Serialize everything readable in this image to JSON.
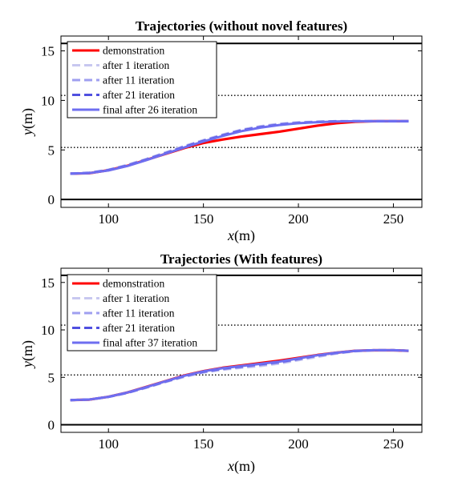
{
  "chart_data": [
    {
      "type": "line",
      "title": "Trajectories (without novel features)",
      "xlabel": "x(m)",
      "ylabel": "y(m)",
      "xlim": [
        75,
        265
      ],
      "ylim": [
        -0.8,
        16.5
      ],
      "xticks": [
        100,
        150,
        200,
        250
      ],
      "yticks": [
        0,
        5,
        10,
        15
      ],
      "grid": false,
      "legend_position": "top-left",
      "boundary_lines": [
        {
          "y": 15.75,
          "style": "solid"
        },
        {
          "y": 10.5,
          "style": "dotted"
        },
        {
          "y": 5.25,
          "style": "dotted"
        },
        {
          "y": 0,
          "style": "solid"
        }
      ],
      "series": [
        {
          "name": "demonstration",
          "color": "#ff0000",
          "style": "solid",
          "x": [
            80,
            90,
            100,
            110,
            120,
            130,
            140,
            150,
            160,
            170,
            180,
            190,
            200,
            210,
            220,
            230,
            240,
            250,
            258
          ],
          "y": [
            2.6,
            2.65,
            2.95,
            3.4,
            4.0,
            4.6,
            5.2,
            5.7,
            6.05,
            6.35,
            6.6,
            6.85,
            7.15,
            7.45,
            7.7,
            7.85,
            7.9,
            7.9,
            7.9
          ]
        },
        {
          "name": "after 1 iteration",
          "color": "#c8c8f0",
          "style": "dashed",
          "x": [
            80,
            90,
            100,
            110,
            120,
            130,
            140,
            150,
            160,
            170,
            180,
            190,
            200,
            210,
            220,
            230,
            240,
            250,
            258
          ],
          "y": [
            2.6,
            2.7,
            3.0,
            3.5,
            4.1,
            4.75,
            5.4,
            6.0,
            6.55,
            7.05,
            7.4,
            7.65,
            7.8,
            7.85,
            7.9,
            7.9,
            7.9,
            7.9,
            7.9
          ]
        },
        {
          "name": "after 11 iteration",
          "color": "#9f9ff0",
          "style": "dashed",
          "x": [
            80,
            90,
            100,
            110,
            120,
            130,
            140,
            150,
            160,
            170,
            180,
            190,
            200,
            210,
            220,
            230,
            240,
            250,
            258
          ],
          "y": [
            2.6,
            2.7,
            2.98,
            3.45,
            4.05,
            4.7,
            5.35,
            5.95,
            6.5,
            7.0,
            7.35,
            7.6,
            7.75,
            7.85,
            7.9,
            7.9,
            7.9,
            7.9,
            7.9
          ]
        },
        {
          "name": "after 21 iteration",
          "color": "#5050e0",
          "style": "dashed",
          "x": [
            80,
            90,
            100,
            110,
            120,
            130,
            140,
            150,
            160,
            170,
            180,
            190,
            200,
            210,
            220,
            230,
            240,
            250,
            258
          ],
          "y": [
            2.6,
            2.68,
            2.96,
            3.42,
            4.02,
            4.65,
            5.3,
            5.9,
            6.45,
            6.95,
            7.3,
            7.55,
            7.72,
            7.82,
            7.88,
            7.9,
            7.9,
            7.9,
            7.9
          ]
        },
        {
          "name": "final after 26 iteration",
          "color": "#6e6ef0",
          "style": "solid",
          "x": [
            80,
            90,
            100,
            110,
            120,
            130,
            140,
            150,
            160,
            170,
            180,
            190,
            200,
            210,
            220,
            230,
            240,
            250,
            258
          ],
          "y": [
            2.6,
            2.66,
            2.93,
            3.38,
            3.98,
            4.62,
            5.25,
            5.85,
            6.4,
            6.9,
            7.25,
            7.52,
            7.7,
            7.8,
            7.87,
            7.9,
            7.9,
            7.9,
            7.9
          ]
        }
      ]
    },
    {
      "type": "line",
      "title": "Trajectories (With features)",
      "xlabel": "x(m)",
      "ylabel": "y(m)",
      "xlim": [
        75,
        265
      ],
      "ylim": [
        -0.8,
        16.5
      ],
      "xticks": [
        100,
        150,
        200,
        250
      ],
      "yticks": [
        0,
        5,
        10,
        15
      ],
      "grid": false,
      "legend_position": "top-left",
      "boundary_lines": [
        {
          "y": 15.75,
          "style": "solid"
        },
        {
          "y": 10.5,
          "style": "dotted"
        },
        {
          "y": 5.25,
          "style": "dotted"
        },
        {
          "y": 0,
          "style": "solid"
        }
      ],
      "series": [
        {
          "name": "demonstration",
          "color": "#ff0000",
          "style": "solid",
          "x": [
            80,
            90,
            100,
            110,
            120,
            130,
            140,
            150,
            160,
            170,
            180,
            190,
            200,
            210,
            220,
            230,
            240,
            250,
            258
          ],
          "y": [
            2.6,
            2.65,
            2.95,
            3.4,
            4.0,
            4.6,
            5.2,
            5.65,
            6.0,
            6.25,
            6.5,
            6.75,
            7.05,
            7.35,
            7.6,
            7.8,
            7.85,
            7.85,
            7.8
          ]
        },
        {
          "name": "after 1 iteration",
          "color": "#c8c8f0",
          "style": "dashed",
          "x": [
            80,
            90,
            100,
            110,
            120,
            130,
            140,
            150,
            160,
            170,
            180,
            190,
            200,
            210,
            220,
            230,
            240,
            250,
            258
          ],
          "y": [
            2.6,
            2.66,
            2.93,
            3.35,
            3.9,
            4.5,
            5.05,
            5.5,
            5.8,
            6.0,
            6.2,
            6.45,
            6.8,
            7.15,
            7.5,
            7.75,
            7.85,
            7.85,
            7.8
          ]
        },
        {
          "name": "after 11 iteration",
          "color": "#9f9ff0",
          "style": "dashed",
          "x": [
            80,
            90,
            100,
            110,
            120,
            130,
            140,
            150,
            160,
            170,
            180,
            190,
            200,
            210,
            220,
            230,
            240,
            250,
            258
          ],
          "y": [
            2.6,
            2.66,
            2.94,
            3.37,
            3.93,
            4.53,
            5.1,
            5.55,
            5.85,
            6.08,
            6.3,
            6.55,
            6.9,
            7.25,
            7.55,
            7.77,
            7.86,
            7.86,
            7.8
          ]
        },
        {
          "name": "after 21 iteration",
          "color": "#5050e0",
          "style": "dashed",
          "x": [
            80,
            90,
            100,
            110,
            120,
            130,
            140,
            150,
            160,
            170,
            180,
            190,
            200,
            210,
            220,
            230,
            240,
            250,
            258
          ],
          "y": [
            2.6,
            2.66,
            2.94,
            3.38,
            3.96,
            4.56,
            5.14,
            5.6,
            5.92,
            6.15,
            6.38,
            6.62,
            6.95,
            7.3,
            7.58,
            7.78,
            7.86,
            7.86,
            7.8
          ]
        },
        {
          "name": "final after 37 iteration",
          "color": "#6e6ef0",
          "style": "solid",
          "x": [
            80,
            90,
            100,
            110,
            120,
            130,
            140,
            150,
            160,
            170,
            180,
            190,
            200,
            210,
            220,
            230,
            240,
            250,
            258
          ],
          "y": [
            2.6,
            2.66,
            2.95,
            3.4,
            3.98,
            4.58,
            5.17,
            5.63,
            5.96,
            6.2,
            6.42,
            6.66,
            7.0,
            7.33,
            7.6,
            7.79,
            7.86,
            7.86,
            7.8
          ]
        }
      ]
    }
  ]
}
